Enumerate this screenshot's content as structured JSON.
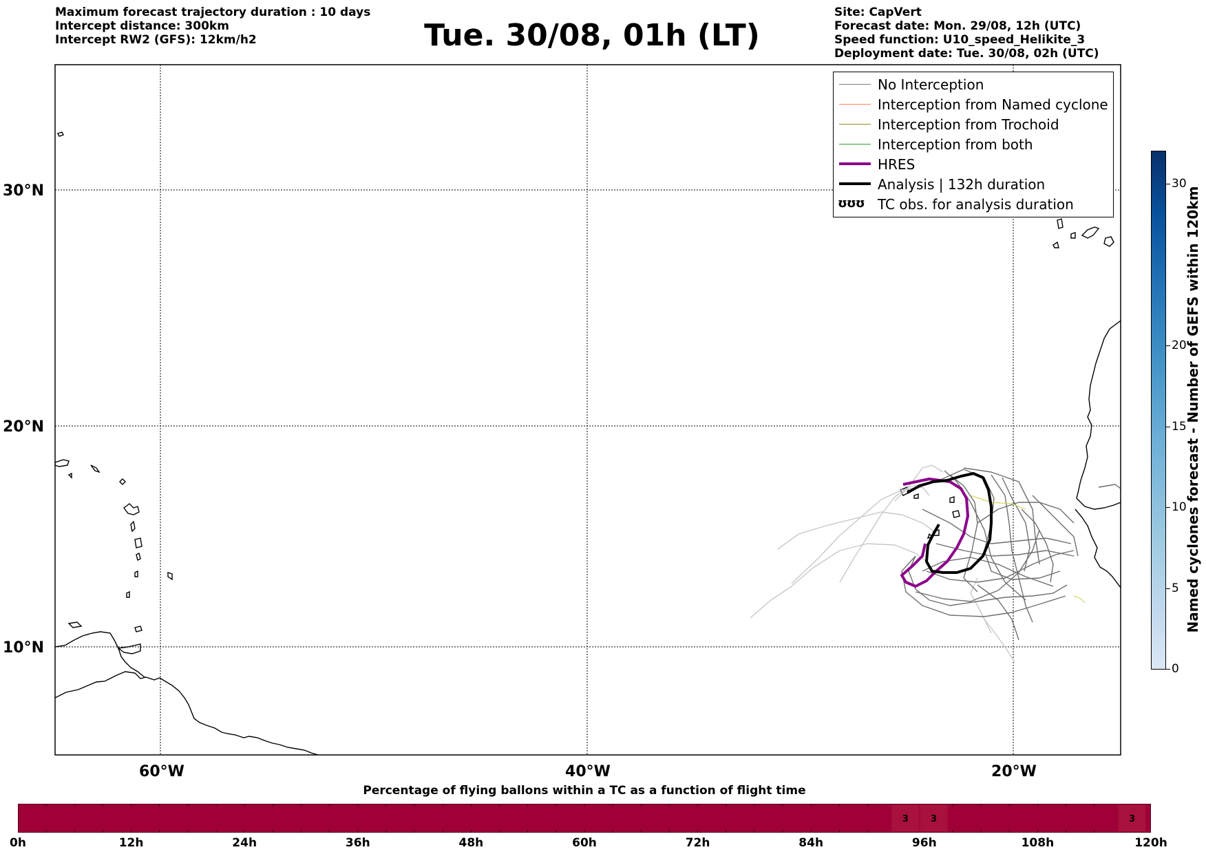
{
  "header": {
    "left_info": [
      "Maximum forecast trajectory duration : 10 days",
      "Intercept distance: 300km",
      "Intercept RW2 (GFS):  12km/h2"
    ],
    "title": "Tue. 30/08, 01h (LT)",
    "right_info": [
      "Site: CapVert",
      "Forecast date: Mon. 29/08, 12h (UTC)",
      "Speed function: U10_speed_Helikite_3",
      "Deployment date: Tue. 30/08, 02h (UTC)"
    ]
  },
  "map": {
    "lat_labels": [
      "30°N",
      "20°N",
      "10°N"
    ],
    "lon_labels": [
      "60°W",
      "40°W",
      "20°W"
    ],
    "grid": true
  },
  "legend": {
    "items": [
      {
        "label": "No Interception",
        "color": "#808080",
        "width": 1
      },
      {
        "label": "Interception from Named cyclone",
        "color": "#ff7f50",
        "width": 1
      },
      {
        "label": "Interception from Trochoid",
        "color": "#9a8a2a",
        "width": 1
      },
      {
        "label": "Interception from both",
        "color": "#2ca02c",
        "width": 1
      },
      {
        "label": "HRES",
        "color": "#8b008b",
        "width": 4
      },
      {
        "label": "Analysis | 132h duration",
        "color": "#000000",
        "width": 4
      }
    ],
    "tc_symbol": "ʊʊʊ",
    "tc_label": "TC obs. for analysis duration"
  },
  "colorbar": {
    "title": "Named cyclones forecast - Number of GEFS within 120km",
    "ticks": [
      "0",
      "5",
      "10",
      "15",
      "20",
      "30"
    ],
    "range": [
      0,
      32
    ]
  },
  "bottom_bar": {
    "title": "Percentage of flying ballons within a TC as a function of flight time",
    "color": "#9f0038",
    "time_labels": [
      "0h",
      "12h",
      "24h",
      "36h",
      "48h",
      "60h",
      "72h",
      "84h",
      "96h",
      "108h",
      "120h"
    ],
    "cell_values": [
      {
        "time_h": 94,
        "value": "3"
      },
      {
        "time_h": 97,
        "value": "3"
      },
      {
        "time_h": 118,
        "value": "3"
      }
    ]
  }
}
